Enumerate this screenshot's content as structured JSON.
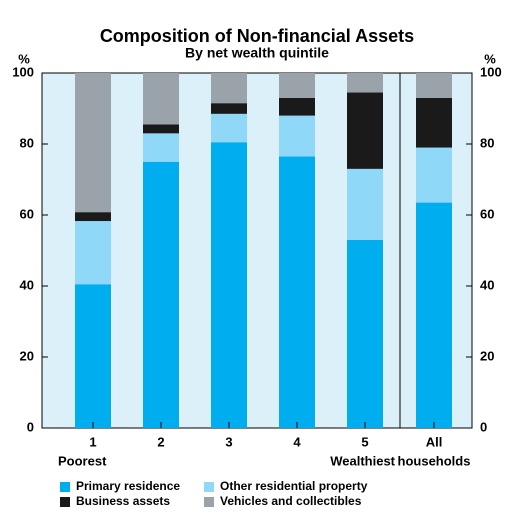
{
  "chart_data": {
    "type": "stacked_bar",
    "title": "Composition of Non-financial Assets",
    "subtitle": "By net wealth quintile",
    "y_unit": "%",
    "y2_unit": "%",
    "categories": [
      "1",
      "2",
      "3",
      "4",
      "5",
      "All"
    ],
    "category_sublabels": [
      "Poorest",
      null,
      null,
      null,
      "Wealthiest",
      "households"
    ],
    "series": [
      {
        "name": "Primary residence",
        "color": "#00aeef",
        "values": [
          40.5,
          75,
          80.5,
          76.5,
          53,
          63.5
        ]
      },
      {
        "name": "Other residential property",
        "color": "#8fd8f8",
        "values": [
          17.8,
          8,
          8,
          11.5,
          20,
          15.5
        ]
      },
      {
        "name": "Business assets",
        "color": "#1a1a1a",
        "values": [
          2.5,
          2.5,
          3,
          5,
          21.5,
          14
        ]
      },
      {
        "name": "Vehicles and collectibles",
        "color": "#9aa3aa",
        "values": [
          39.2,
          14.5,
          8.5,
          7,
          5.5,
          7
        ]
      }
    ],
    "ylim": [
      0,
      100
    ],
    "yticks": [
      0,
      20,
      40,
      60,
      80,
      100
    ],
    "y2lim": [
      0,
      100
    ],
    "y2ticks": [
      0,
      20,
      40,
      60,
      80,
      100
    ],
    "grid": false
  }
}
